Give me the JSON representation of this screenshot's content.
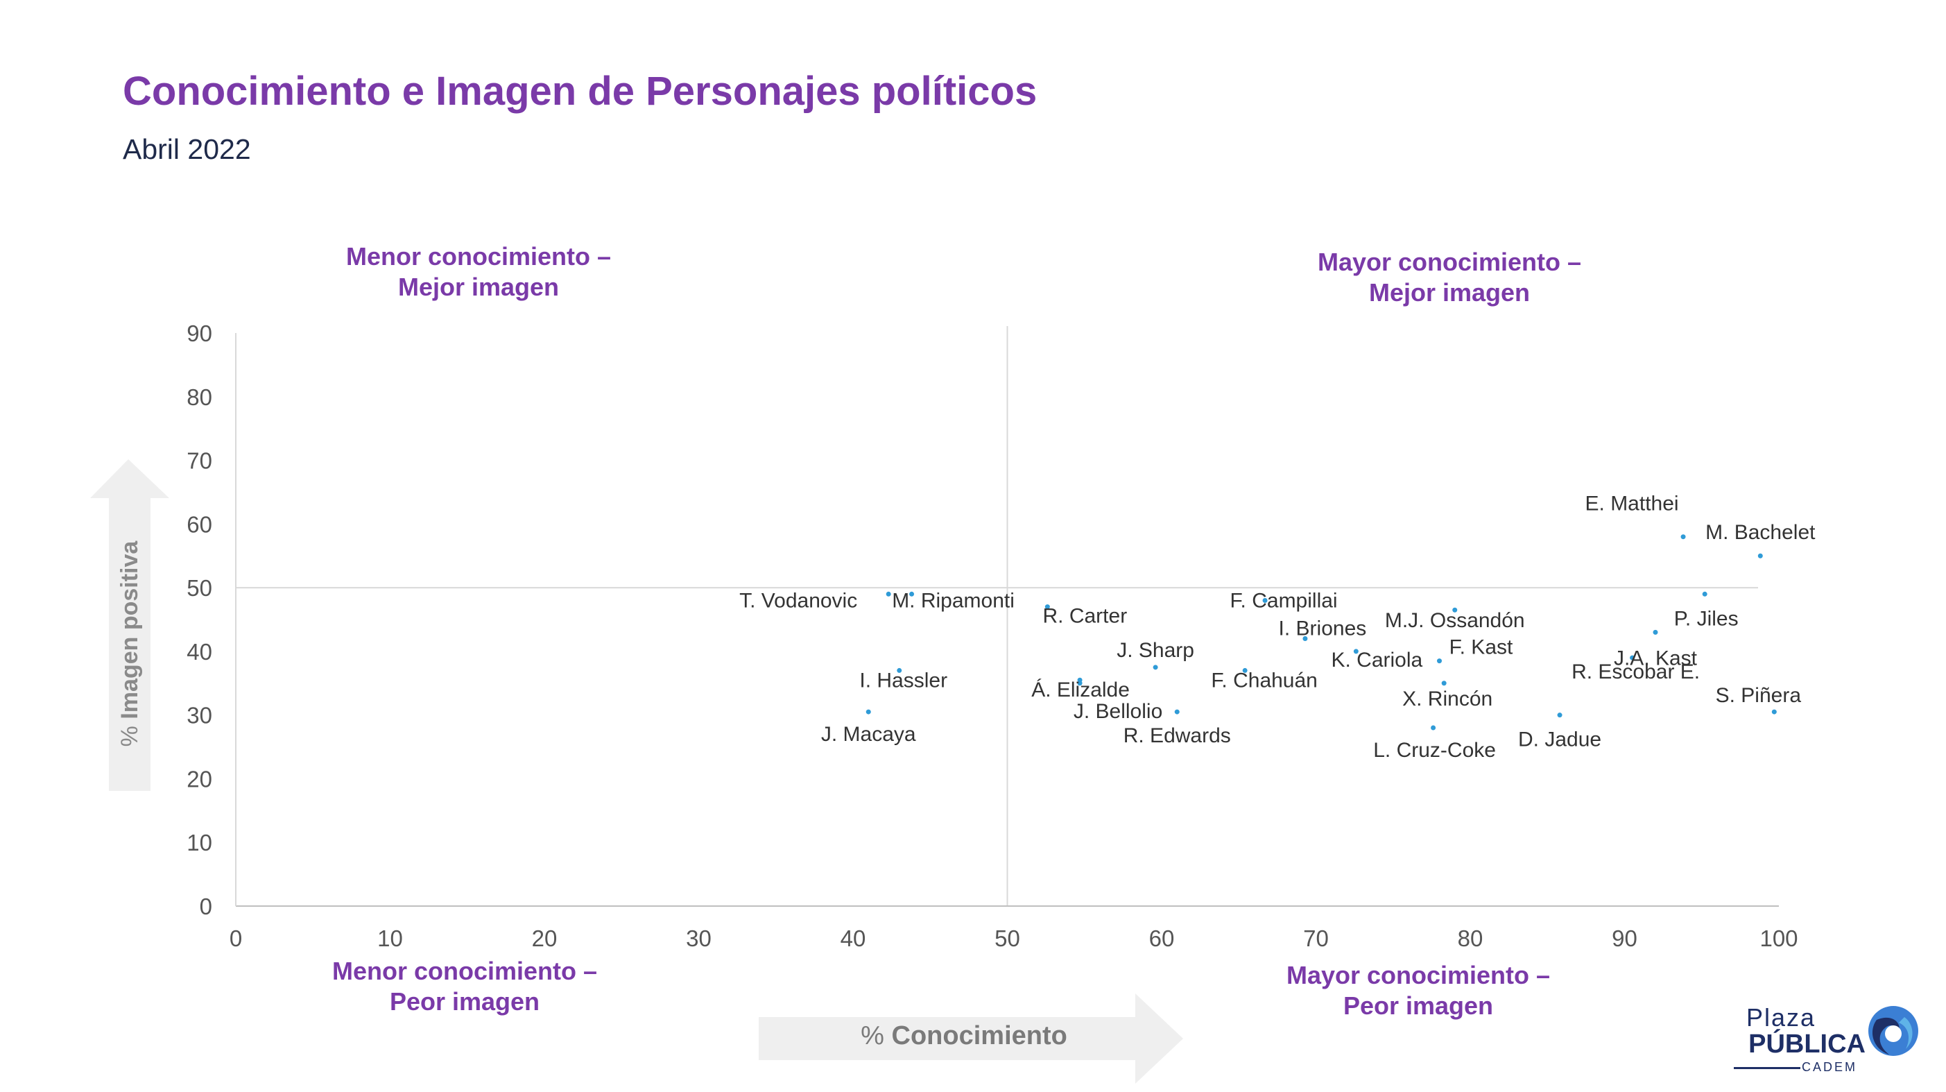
{
  "header": {
    "title": "Conocimiento e Imagen de Personajes políticos",
    "subtitle": "Abril 2022"
  },
  "quadrants": {
    "top_left": [
      "Menor conocimiento –",
      "Mejor imagen"
    ],
    "top_right": [
      "Mayor conocimiento –",
      "Mejor imagen"
    ],
    "bottom_left": [
      "Menor conocimiento –",
      "Peor imagen"
    ],
    "bottom_right": [
      "Mayor conocimiento –",
      "Peor imagen"
    ]
  },
  "axis_titles": {
    "x_prefix": "%",
    "x_bold": "Conocimiento",
    "y_prefix": "%",
    "y_bold": "Imagen positiva"
  },
  "logo": {
    "line1": "Plaza",
    "line2": "PÚBLICA",
    "line3": "CADEM"
  },
  "colors": {
    "accent": "#7a3aa8",
    "point": "#2f9bd7",
    "arrow": "#efefef"
  },
  "chart_data": {
    "type": "scatter",
    "title": "Conocimiento e Imagen de Personajes políticos",
    "subtitle": "Abril 2022",
    "xlabel": "% Conocimiento",
    "ylabel": "% Imagen positiva",
    "xlim": [
      0,
      100
    ],
    "ylim": [
      0,
      90
    ],
    "xticks": [
      0,
      10,
      20,
      30,
      40,
      50,
      60,
      70,
      80,
      90,
      100
    ],
    "yticks": [
      0,
      10,
      20,
      30,
      40,
      50,
      60,
      70,
      80,
      90
    ],
    "reference_lines": {
      "x": 50,
      "y": 50
    },
    "grid": false,
    "points": [
      {
        "name": "E. Matthei",
        "x": 93.8,
        "y": 58
      },
      {
        "name": "M. Bachelet",
        "x": 98.8,
        "y": 55
      },
      {
        "name": "P. Jiles",
        "x": 95.2,
        "y": 49
      },
      {
        "name": "J.A. Kast",
        "x": 92,
        "y": 43
      },
      {
        "name": "R. Escobar E.",
        "x": 90.5,
        "y": 39
      },
      {
        "name": "S. Piñera",
        "x": 99.7,
        "y": 30.5
      },
      {
        "name": "D. Jadue",
        "x": 85.8,
        "y": 30
      },
      {
        "name": "M.J. Ossandón",
        "x": 79,
        "y": 46.5
      },
      {
        "name": "F. Kast",
        "x": 78,
        "y": 38.5
      },
      {
        "name": "X. Rincón",
        "x": 78.3,
        "y": 35
      },
      {
        "name": "L. Cruz-Coke",
        "x": 77.6,
        "y": 28
      },
      {
        "name": "K. Cariola",
        "x": 72.6,
        "y": 40
      },
      {
        "name": "I. Briones",
        "x": 69.3,
        "y": 42
      },
      {
        "name": "F. Campillai",
        "x": 66.7,
        "y": 48
      },
      {
        "name": "F. Chahuán",
        "x": 65.4,
        "y": 37
      },
      {
        "name": "J. Sharp",
        "x": 59.6,
        "y": 37.5
      },
      {
        "name": "R. Edwards",
        "x": 61,
        "y": 30.5
      },
      {
        "name": "J. Bellolio",
        "x": 54.7,
        "y": 35
      },
      {
        "name": "Á. Elizalde",
        "x": 54.7,
        "y": 35.5
      },
      {
        "name": "R. Carter",
        "x": 52.6,
        "y": 47
      },
      {
        "name": "M. Ripamonti",
        "x": 43.8,
        "y": 49
      },
      {
        "name": "T. Vodanovic",
        "x": 42.3,
        "y": 49
      },
      {
        "name": "I. Hassler",
        "x": 43,
        "y": 37
      },
      {
        "name": "J. Macaya",
        "x": 41,
        "y": 30.5
      }
    ]
  }
}
